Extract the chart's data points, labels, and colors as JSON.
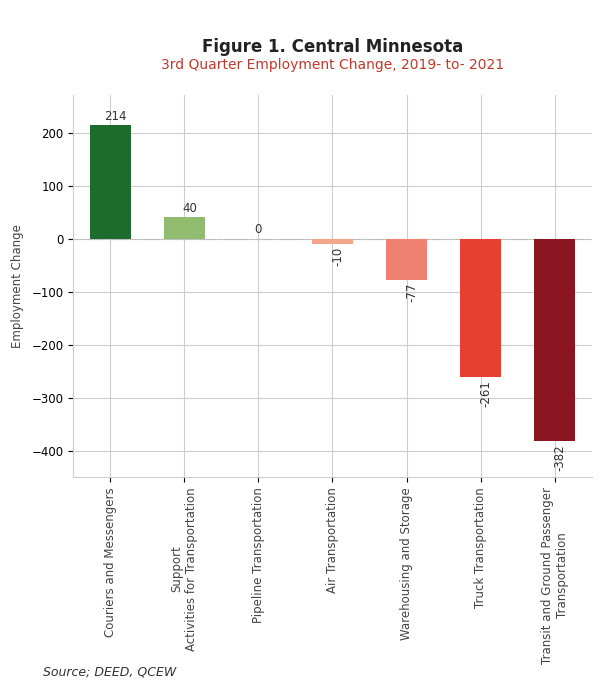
{
  "title": "Figure 1. Central Minnesota",
  "subtitle": "3rd Quarter Employment Change, 2019- to- 2021",
  "source": "Source; DEED, QCEW",
  "categories": [
    "Couriers and Messengers",
    "Support\nActivities for Transportation",
    "Pipeline Transportation",
    "Air Transportation",
    "Warehousing and Storage",
    "Truck Transportation",
    "Transit and Ground Passenger\nTransportation"
  ],
  "values": [
    214,
    40,
    0,
    -10,
    -77,
    -261,
    -382
  ],
  "bar_colors": [
    "#1e6b2e",
    "#8fbc6e",
    "#c8aa8a",
    "#f4a58a",
    "#f08070",
    "#e84030",
    "#8b1520"
  ],
  "ylabel": "Employment Change",
  "ylim": [
    -450,
    270
  ],
  "yticks": [
    -400,
    -300,
    -200,
    -100,
    0,
    100,
    200
  ],
  "background_color": "#ffffff",
  "grid_color": "#cccccc",
  "title_fontsize": 12,
  "subtitle_fontsize": 10,
  "label_fontsize": 8.5,
  "tick_fontsize": 8.5,
  "source_fontsize": 9
}
